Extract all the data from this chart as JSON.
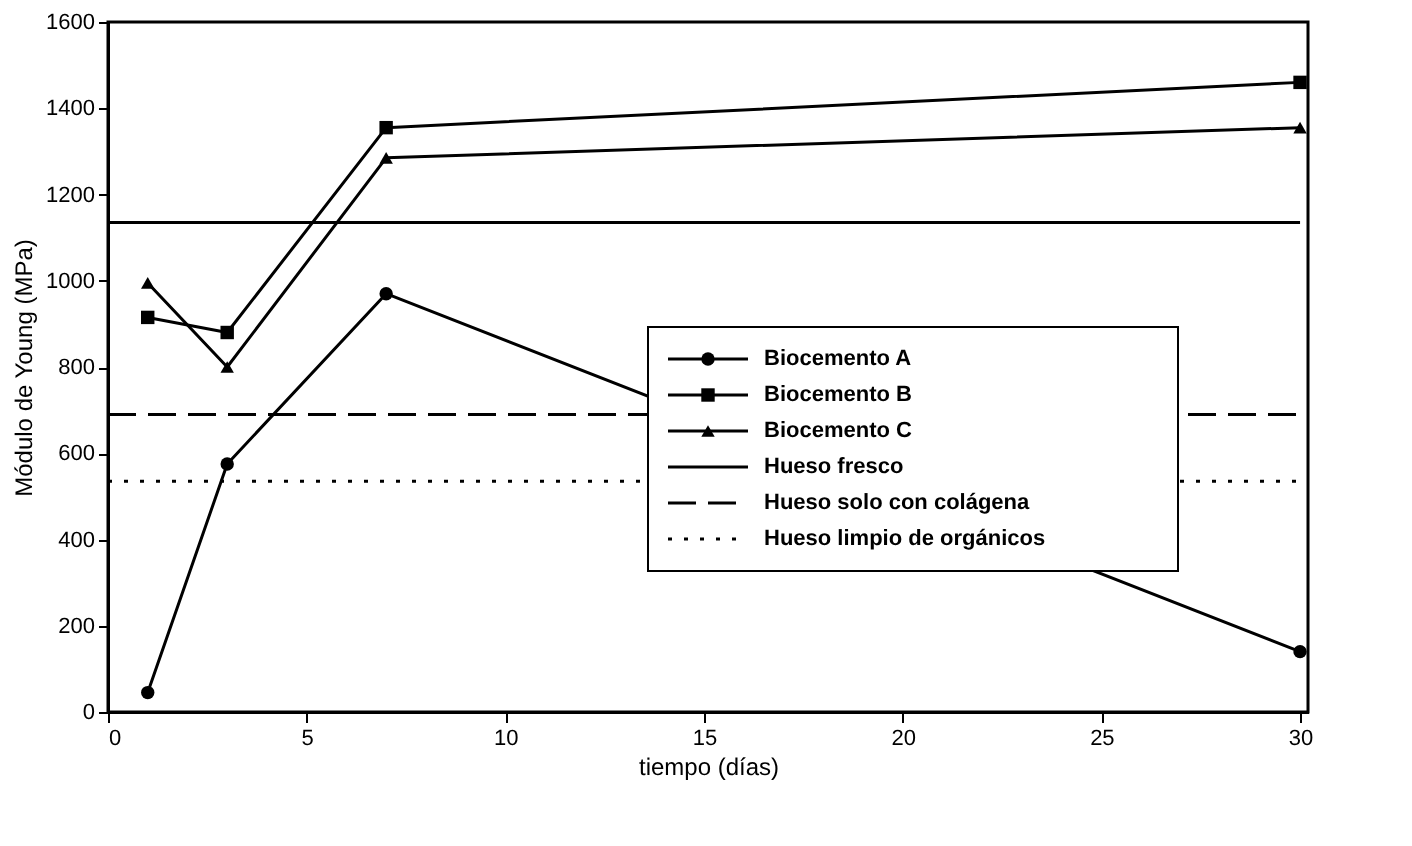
{
  "chart_data": {
    "type": "line",
    "xlabel": "tiempo (días)",
    "ylabel": "Módulo de Young (MPa)",
    "xlim": [
      0,
      30.2
    ],
    "ylim": [
      0,
      1600
    ],
    "xticks": [
      0,
      5,
      10,
      15,
      20,
      25,
      30
    ],
    "yticks": [
      0,
      200,
      400,
      600,
      800,
      1000,
      1200,
      1400,
      1600
    ],
    "grid": false,
    "legend": "center right",
    "series": [
      {
        "name": "Biocemento A",
        "color": "#000000",
        "marker": "circle",
        "line_style": "solid",
        "x": [
          1,
          3,
          7,
          30
        ],
        "values": [
          45,
          575,
          970,
          140
        ]
      },
      {
        "name": "Biocemento B",
        "color": "#000000",
        "marker": "square",
        "line_style": "solid",
        "x": [
          1,
          3,
          7,
          30
        ],
        "values": [
          915,
          880,
          1355,
          1460
        ]
      },
      {
        "name": "Biocemento C",
        "color": "#000000",
        "marker": "triangle",
        "line_style": "solid",
        "x": [
          1,
          3,
          7,
          30
        ],
        "values": [
          995,
          800,
          1285,
          1355
        ]
      },
      {
        "name": "Hueso fresco",
        "color": "#000000",
        "marker": "none",
        "line_style": "solid",
        "x": [
          0,
          30
        ],
        "values": [
          1135,
          1135
        ]
      },
      {
        "name": "Hueso solo con colágena",
        "color": "#000000",
        "marker": "none",
        "line_style": "dashed",
        "x": [
          0,
          30
        ],
        "values": [
          690,
          690
        ]
      },
      {
        "name": "Hueso limpio de orgánicos",
        "color": "#000000",
        "marker": "none",
        "line_style": "dotted",
        "x": [
          0,
          30
        ],
        "values": [
          535,
          535
        ]
      }
    ]
  }
}
